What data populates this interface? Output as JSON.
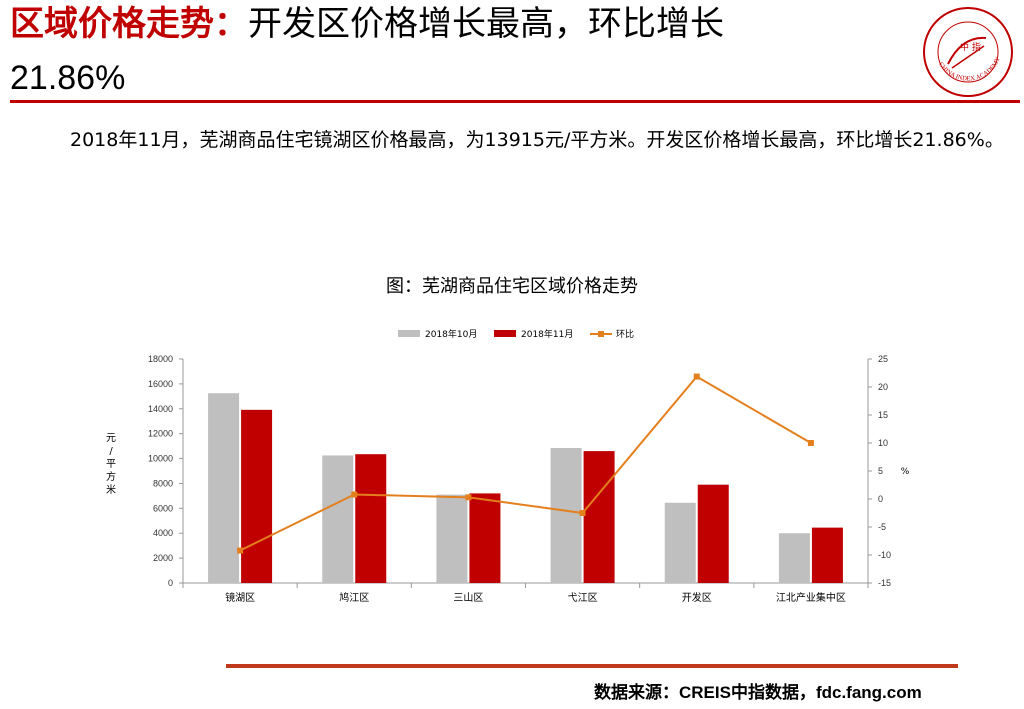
{
  "header": {
    "title_red": "区域价格走势：",
    "title_black": "开发区价格增长最高，环比增长",
    "title_second_line": "21.86%"
  },
  "logo": {
    "icon": "china-index-academy-seal",
    "text": "CHINA INDEX ACADEMY",
    "center_text": "中 指"
  },
  "body": {
    "paragraph": "2018年11月，芜湖商品住宅镜湖区价格最高，为13915元/平方米。开发区价格增长最高，环比增长21.86%。"
  },
  "source": "数据来源：CREIS中指数据，fdc.fang.com",
  "colors": {
    "accent": "#c00000",
    "series_oct": "#bfbfbf",
    "series_nov": "#c00000",
    "series_mom": "#e47f1e"
  },
  "chart_data": {
    "type": "bar",
    "title": "图：芜湖商品住宅区域价格走势",
    "categories": [
      "镜湖区",
      "鸠江区",
      "三山区",
      "弋江区",
      "开发区",
      "江北产业集中区"
    ],
    "series": [
      {
        "name": "2018年10月",
        "type": "bar",
        "axis": "left",
        "values": [
          15250,
          10250,
          7100,
          10850,
          6450,
          4000
        ]
      },
      {
        "name": "2018年11月",
        "type": "bar",
        "axis": "left",
        "values": [
          13915,
          10350,
          7200,
          10600,
          7900,
          4450
        ]
      },
      {
        "name": "环比",
        "type": "line",
        "axis": "right",
        "values": [
          -9.2,
          0.8,
          0.3,
          -2.5,
          21.86,
          10.0
        ]
      }
    ],
    "ylabel": "元/平方米",
    "y2label": "%",
    "ylim": [
      0,
      18000
    ],
    "y_ticks": [
      0,
      2000,
      4000,
      6000,
      8000,
      10000,
      12000,
      14000,
      16000,
      18000
    ],
    "y2lim": [
      -15,
      25
    ],
    "y2_ticks": [
      -15,
      -10,
      -5,
      0,
      5,
      10,
      15,
      20,
      25
    ],
    "legend_position": "top",
    "grid": false
  }
}
